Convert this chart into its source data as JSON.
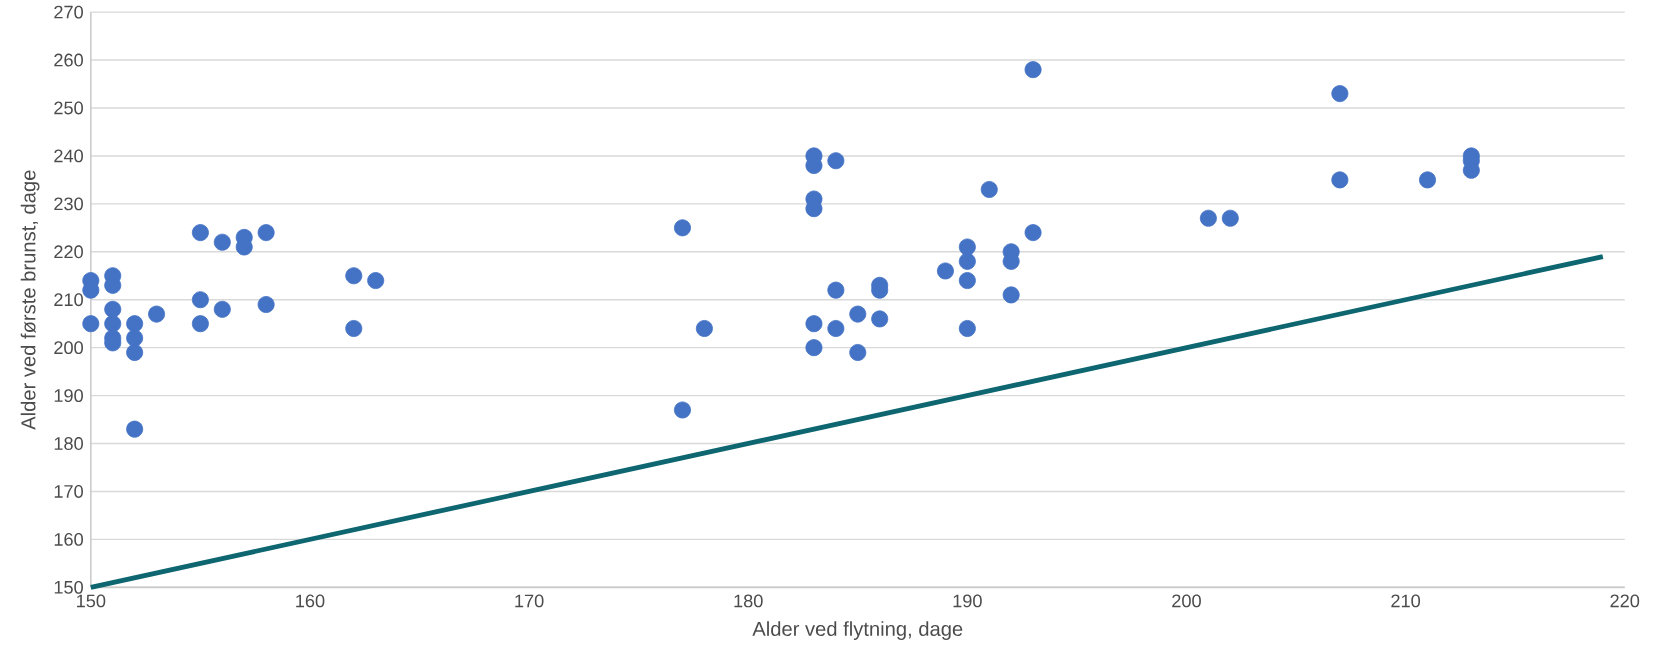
{
  "chart_data": {
    "type": "scatter",
    "xlabel": "Alder ved flytning, dage",
    "ylabel": "Alder ved første brunst, dage",
    "xlim": [
      150,
      220
    ],
    "xticks": [
      150,
      160,
      170,
      180,
      190,
      200,
      210,
      220
    ],
    "ylim": [
      150,
      270
    ],
    "yticks": [
      150,
      160,
      170,
      180,
      190,
      200,
      210,
      220,
      230,
      240,
      250,
      260,
      270
    ],
    "grid": "y",
    "series": [
      {
        "type": "scatter",
        "marker": "circle",
        "color": "#4472c4",
        "x": [
          150,
          150,
          150,
          151,
          151,
          151,
          151,
          151,
          151,
          152,
          152,
          152,
          152,
          153,
          155,
          155,
          155,
          156,
          156,
          157,
          157,
          158,
          158,
          162,
          162,
          163,
          177,
          177,
          178,
          183,
          183,
          183,
          183,
          183,
          183,
          184,
          184,
          184,
          185,
          185,
          186,
          186,
          186,
          189,
          190,
          190,
          190,
          190,
          191,
          192,
          192,
          192,
          193,
          193,
          201,
          202,
          207,
          207,
          211,
          213,
          213,
          213
        ],
        "values": [
          214,
          212,
          205,
          215,
          213,
          208,
          205,
          202,
          201,
          205,
          202,
          199,
          183,
          207,
          224,
          210,
          205,
          222,
          208,
          223,
          221,
          224,
          209,
          215,
          204,
          214,
          225,
          187,
          204,
          240,
          238,
          231,
          229,
          205,
          200,
          239,
          212,
          204,
          207,
          199,
          213,
          212,
          206,
          216,
          221,
          218,
          214,
          204,
          233,
          220,
          218,
          211,
          258,
          224,
          227,
          227,
          253,
          235,
          235,
          240,
          239,
          237
        ]
      },
      {
        "type": "line",
        "color": "#0e6671",
        "x": [
          150,
          219
        ],
        "values": [
          150,
          219
        ]
      }
    ]
  }
}
